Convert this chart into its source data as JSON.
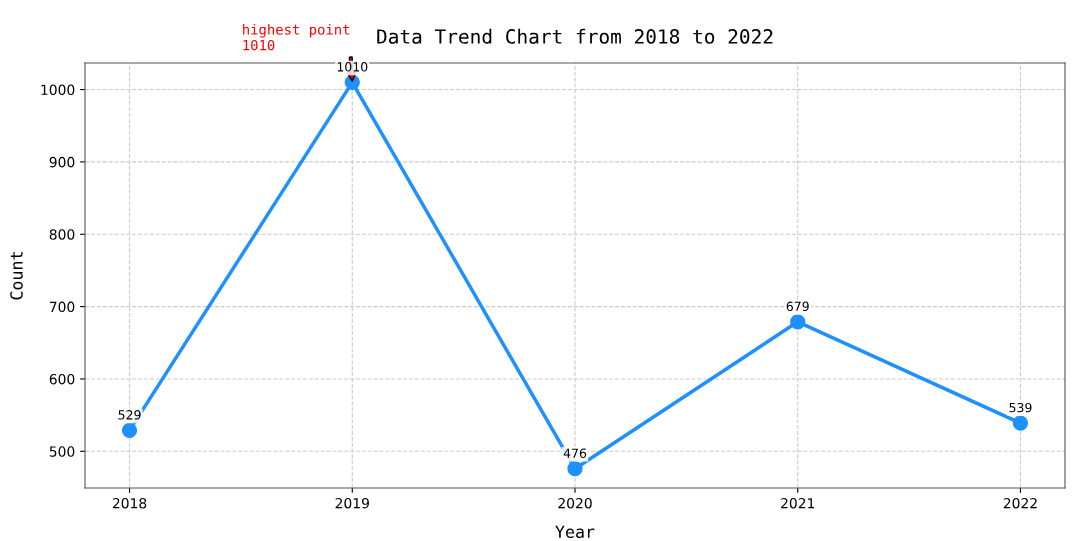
{
  "chart_data": {
    "type": "line",
    "title": "Data Trend Chart from 2018 to 2022",
    "xlabel": "Year",
    "ylabel": "Count",
    "x": [
      2018,
      2019,
      2020,
      2021,
      2022
    ],
    "series": [
      {
        "color": "#1e90ff",
        "values": [
          529,
          1010,
          476,
          679,
          539
        ]
      }
    ],
    "xlim": [
      2017.8,
      2022.2
    ],
    "xticks": [
      2018,
      2019,
      2020,
      2021,
      2022
    ],
    "ylim": [
      449.3,
      1036.7
    ],
    "yticks": [
      500,
      600,
      700,
      800,
      900,
      1000
    ],
    "grid": true,
    "marker": "circle",
    "line_style": "solid",
    "data_labels": true,
    "annotations": [
      "highest point\n1010"
    ]
  }
}
